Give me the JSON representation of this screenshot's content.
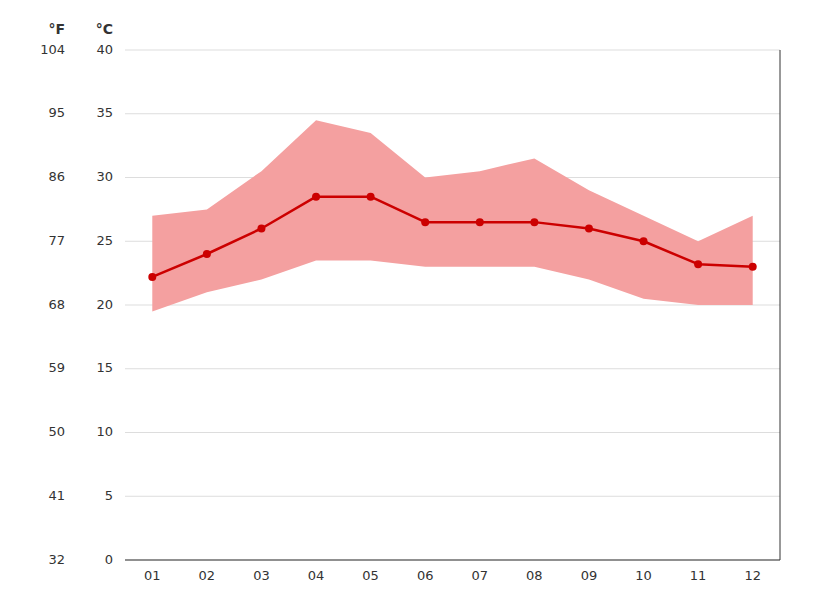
{
  "chart_data": {
    "type": "line",
    "x": [
      1,
      2,
      3,
      4,
      5,
      6,
      7,
      8,
      9,
      10,
      11,
      12
    ],
    "xlim": [
      0.5,
      12.5
    ],
    "xticks": [
      {
        "value": 1,
        "label": "01"
      },
      {
        "value": 2,
        "label": "02"
      },
      {
        "value": 3,
        "label": "03"
      },
      {
        "value": 4,
        "label": "04"
      },
      {
        "value": 5,
        "label": "05"
      },
      {
        "value": 6,
        "label": "06"
      },
      {
        "value": 7,
        "label": "07"
      },
      {
        "value": 8,
        "label": "08"
      },
      {
        "value": 9,
        "label": "09"
      },
      {
        "value": 10,
        "label": "10"
      },
      {
        "value": 11,
        "label": "11"
      },
      {
        "value": 12,
        "label": "12"
      }
    ],
    "ylabel": "°C",
    "ylim": [
      0,
      40
    ],
    "yticks": [
      0,
      5,
      10,
      15,
      20,
      25,
      30,
      35,
      40
    ],
    "y2label": "°F",
    "y2lim": [
      32,
      104
    ],
    "y2ticks": [
      32,
      41,
      50,
      59,
      68,
      77,
      86,
      95,
      104
    ],
    "grid": true,
    "series": [
      {
        "type": "area",
        "color": "#f4a0a0",
        "low": [
          19.5,
          21.0,
          22.0,
          23.5,
          23.5,
          23.0,
          23.0,
          23.0,
          22.0,
          20.5,
          20.0,
          20.0
        ],
        "high": [
          27.0,
          27.5,
          30.5,
          34.5,
          33.5,
          30.0,
          30.5,
          31.5,
          29.0,
          27.0,
          25.0,
          27.0
        ]
      },
      {
        "type": "line",
        "color": "#cc0000",
        "marker": "circle",
        "values": [
          22.2,
          24.0,
          26.0,
          28.5,
          28.5,
          26.5,
          26.5,
          26.5,
          26.0,
          25.0,
          23.2,
          23.0
        ]
      }
    ]
  }
}
